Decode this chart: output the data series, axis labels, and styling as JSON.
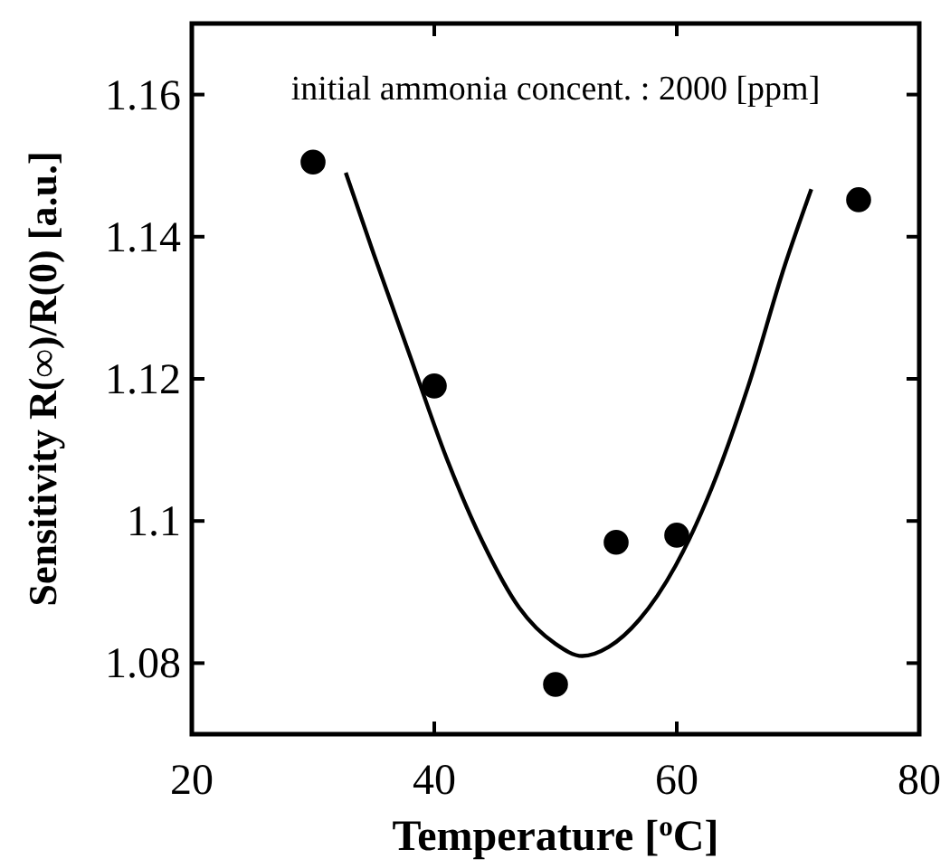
{
  "chart_data": {
    "type": "scatter",
    "xlabel": "Temperature [$^{o}$C]",
    "ylabel": "Sensitivity R(∞)/R(0) [a.u.]",
    "annotations": [
      "initial ammonia concent. : 2000 [ppm]"
    ],
    "xlim": [
      20,
      80
    ],
    "xticks": [
      20,
      40,
      60,
      80
    ],
    "ylim": [
      1.07,
      1.17
    ],
    "yticks": [
      1.08,
      1.1,
      1.12,
      1.14,
      1.16
    ],
    "grid": false,
    "series": [
      {
        "color": "#000000",
        "marker": "circle",
        "x": [
          30,
          40,
          50,
          55,
          60,
          75
        ],
        "values": [
          1.1505,
          1.119,
          1.077,
          1.097,
          1.098,
          1.1452
        ]
      },
      {
        "type": "line",
        "color": "#000000",
        "marker": "none",
        "line_style": "solid",
        "x": [
          32.7,
          35.0,
          38.0,
          41.0,
          44.0,
          47.0,
          50.0,
          52.2,
          54.4,
          56.9,
          59.9,
          62.9,
          65.9,
          68.9,
          71.1
        ],
        "values": [
          1.149,
          1.1376,
          1.1232,
          1.1089,
          1.097,
          1.0878,
          1.0827,
          1.081,
          1.0823,
          1.0861,
          1.0937,
          1.1047,
          1.119,
          1.1359,
          1.1467
        ]
      }
    ]
  }
}
